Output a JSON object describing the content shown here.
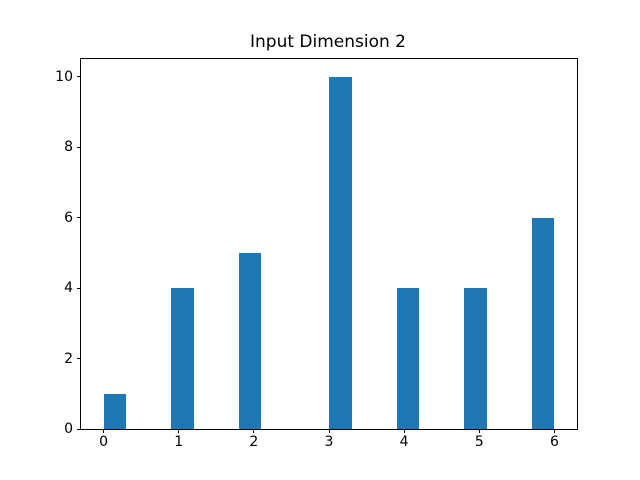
{
  "figure": {
    "background_color": "#ffffff",
    "spine_color": "#000000",
    "text_color": "#000000"
  },
  "chart_data": {
    "type": "bar",
    "subtype": "histogram",
    "title": "Input Dimension 2",
    "xlabel": "",
    "ylabel": "",
    "categories": [
      0,
      1,
      2,
      3,
      4,
      5,
      6
    ],
    "values": [
      1,
      4,
      5,
      10,
      4,
      4,
      6
    ],
    "bars": [
      {
        "x0": 0.0,
        "x1": 0.3,
        "height": 1
      },
      {
        "x0": 0.9,
        "x1": 1.2,
        "height": 4
      },
      {
        "x0": 1.8,
        "x1": 2.1,
        "height": 5
      },
      {
        "x0": 3.0,
        "x1": 3.3,
        "height": 10
      },
      {
        "x0": 3.9,
        "x1": 4.2,
        "height": 4
      },
      {
        "x0": 4.8,
        "x1": 5.1,
        "height": 4
      },
      {
        "x0": 5.7,
        "x1": 6.0,
        "height": 6
      }
    ],
    "bar_color": "#1f77b4",
    "xticks": [
      0,
      1,
      2,
      3,
      4,
      5,
      6
    ],
    "yticks": [
      0,
      2,
      4,
      6,
      8,
      10
    ],
    "xlim": [
      -0.3,
      6.3
    ],
    "ylim": [
      0,
      10.5
    ],
    "grid": false,
    "legend": null
  }
}
